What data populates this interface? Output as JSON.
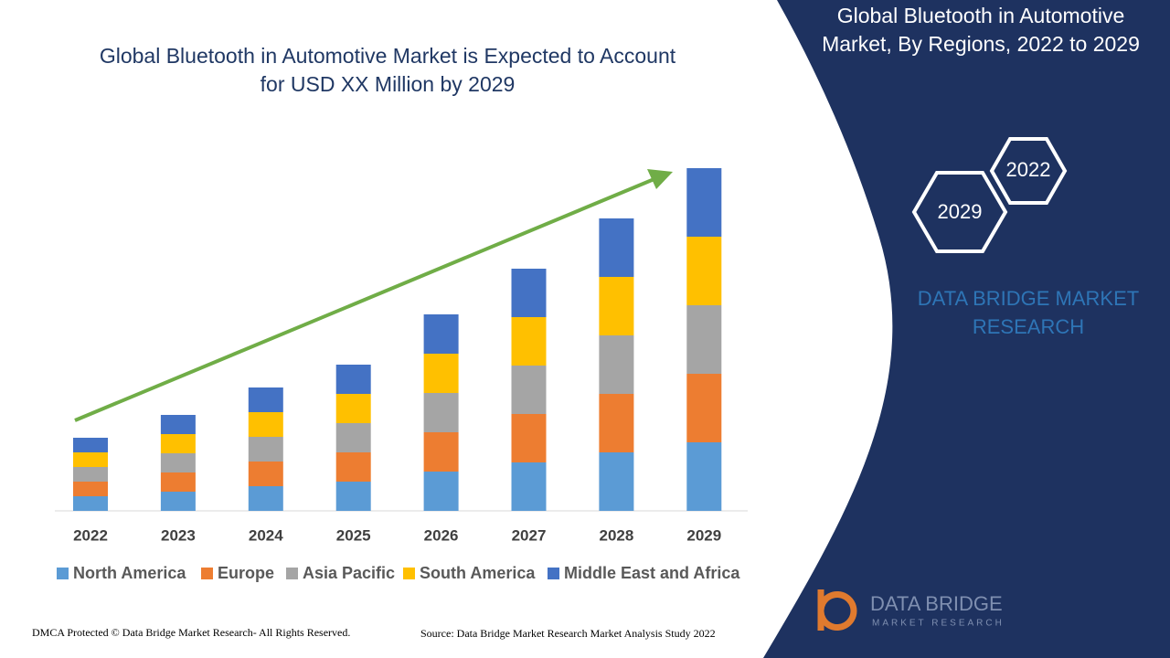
{
  "chart_data": {
    "type": "bar",
    "stacked": true,
    "title": "Global Bluetooth in Automotive Market is Expected to Account for USD XX Million by 2029",
    "categories": [
      "2022",
      "2023",
      "2024",
      "2025",
      "2026",
      "2027",
      "2028",
      "2029"
    ],
    "series": [
      {
        "name": "North America",
        "color": "#5b9bd5",
        "values": [
          16,
          21,
          27,
          32,
          43,
          53,
          64,
          75
        ]
      },
      {
        "name": "Europe",
        "color": "#ed7d31",
        "values": [
          16,
          21,
          27,
          32,
          43,
          53,
          64,
          75
        ]
      },
      {
        "name": "Asia Pacific",
        "color": "#a5a5a5",
        "values": [
          16,
          21,
          27,
          32,
          43,
          53,
          64,
          75
        ]
      },
      {
        "name": "South America",
        "color": "#ffc000",
        "values": [
          16,
          21,
          27,
          32,
          43,
          53,
          64,
          75
        ]
      },
      {
        "name": "Middle East and Africa",
        "color": "#4472c4",
        "values": [
          16,
          21,
          27,
          32,
          43,
          53,
          64,
          75
        ]
      }
    ],
    "legend": "bottom"
  },
  "panel": {
    "title": "Global Bluetooth in Automotive Market, By Regions, 2022 to 2029",
    "hex_top": "2022",
    "hex_bottom": "2029",
    "brand": "DATA BRIDGE MARKET RESEARCH"
  },
  "logo": {
    "name": "DATA BRIDGE",
    "tagline": "MARKET RESEARCH"
  },
  "footer": {
    "left": "DMCA Protected © Data Bridge Market Research- All Rights Reserved.",
    "right": "Source: Data Bridge Market Research Market Analysis Study 2022"
  }
}
